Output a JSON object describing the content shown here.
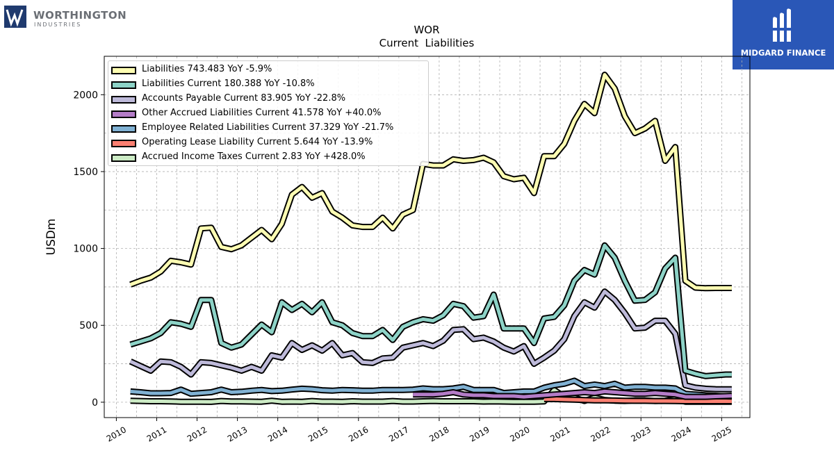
{
  "header": {
    "ticker": "WOR",
    "subtitle": "Current  Liabilities"
  },
  "logos": {
    "left": {
      "name": "WORTHINGTON",
      "sub": "INDUSTRIES",
      "color": "#1f3a6e"
    },
    "right": {
      "name": "MIDGARD FINANCE",
      "color": "#2a57b7"
    }
  },
  "chart_data": {
    "type": "line",
    "title": "WOR",
    "subtitle": "Current  Liabilities",
    "ylabel": "USDm",
    "xlabel": "",
    "xlim": [
      2009.7,
      2025.7
    ],
    "ylim": [
      -100,
      2250
    ],
    "grid": true,
    "legend_position": "top-left",
    "xticks": [
      2010,
      2011,
      2012,
      2013,
      2014,
      2015,
      2016,
      2017,
      2018,
      2019,
      2020,
      2021,
      2022,
      2023,
      2024,
      2025
    ],
    "yticks": [
      0,
      500,
      1000,
      1500,
      2000
    ],
    "x": [
      2010.35,
      2010.6,
      2010.85,
      2011.1,
      2011.35,
      2011.6,
      2011.85,
      2012.1,
      2012.35,
      2012.6,
      2012.85,
      2013.1,
      2013.35,
      2013.6,
      2013.85,
      2014.1,
      2014.35,
      2014.6,
      2014.85,
      2015.1,
      2015.35,
      2015.6,
      2015.85,
      2016.1,
      2016.35,
      2016.6,
      2016.85,
      2017.1,
      2017.35,
      2017.6,
      2017.85,
      2018.1,
      2018.35,
      2018.6,
      2018.85,
      2019.1,
      2019.35,
      2019.6,
      2019.85,
      2020.1,
      2020.35,
      2020.6,
      2020.85,
      2021.1,
      2021.35,
      2021.6,
      2021.85,
      2022.1,
      2022.35,
      2022.6,
      2022.85,
      2023.1,
      2023.35,
      2023.6,
      2023.85,
      2024.1,
      2024.35,
      2024.6,
      2024.85,
      2025.1,
      2025.25
    ],
    "series": [
      {
        "name": "Liabilities",
        "label": "Liabilities  743.483 YoY -5.9%",
        "color": "#ffffb3",
        "values": [
          765,
          790,
          810,
          850,
          920,
          910,
          895,
          1130,
          1135,
          1010,
          995,
          1020,
          1070,
          1120,
          1060,
          1160,
          1350,
          1400,
          1330,
          1360,
          1240,
          1200,
          1150,
          1140,
          1140,
          1200,
          1130,
          1220,
          1250,
          1550,
          1540,
          1540,
          1580,
          1570,
          1575,
          1590,
          1560,
          1470,
          1450,
          1460,
          1360,
          1600,
          1600,
          1680,
          1830,
          1940,
          1880,
          2130,
          2040,
          1860,
          1750,
          1780,
          1830,
          1570,
          1660,
          790,
          745,
          742,
          743,
          743,
          743
        ]
      },
      {
        "name": "Liabilities Current",
        "label": "Liabilities Current  180.388 YoY -10.8%",
        "color": "#8dd3c7",
        "values": [
          375,
          395,
          415,
          450,
          520,
          510,
          490,
          665,
          665,
          385,
          355,
          375,
          440,
          505,
          455,
          650,
          600,
          640,
          585,
          650,
          520,
          500,
          450,
          430,
          430,
          470,
          405,
          490,
          520,
          540,
          530,
          565,
          640,
          625,
          550,
          560,
          700,
          480,
          480,
          480,
          385,
          545,
          555,
          630,
          790,
          860,
          830,
          1020,
          940,
          790,
          660,
          665,
          715,
          870,
          940,
          205,
          185,
          170,
          175,
          180,
          180
        ]
      },
      {
        "name": "Accounts Payable Current",
        "label": "Accounts Payable Current  83.905 YoY -22.8%",
        "color": "#bebada",
        "values": [
          265,
          235,
          205,
          265,
          260,
          230,
          180,
          260,
          255,
          240,
          225,
          205,
          230,
          205,
          305,
          290,
          385,
          340,
          370,
          335,
          385,
          305,
          320,
          260,
          255,
          285,
          290,
          355,
          370,
          385,
          365,
          400,
          470,
          475,
          410,
          420,
          395,
          355,
          330,
          365,
          250,
          290,
          335,
          410,
          560,
          650,
          615,
          720,
          665,
          580,
          480,
          485,
          530,
          530,
          445,
          110,
          95,
          88,
          85,
          84,
          84
        ]
      },
      {
        "name": "Other Accrued Liabilities Current",
        "label": "Other Accrued Liabilities Current  41.578 YoY +40.0%",
        "color": "#b47cc7",
        "values": [
          null,
          null,
          null,
          null,
          null,
          null,
          null,
          null,
          null,
          null,
          null,
          null,
          null,
          null,
          null,
          null,
          null,
          null,
          null,
          null,
          null,
          null,
          null,
          null,
          null,
          null,
          null,
          null,
          50,
          50,
          50,
          55,
          65,
          50,
          45,
          45,
          40,
          40,
          40,
          35,
          40,
          45,
          50,
          55,
          60,
          65,
          60,
          70,
          65,
          60,
          55,
          55,
          60,
          55,
          50,
          35,
          35,
          35,
          38,
          40,
          42
        ]
      },
      {
        "name": "Employee Related Liabilities Current",
        "label": "Employee Related Liabilities Current  37.329 YoY -21.7%",
        "color": "#80b1d3",
        "values": [
          70,
          65,
          58,
          58,
          60,
          82,
          55,
          60,
          65,
          82,
          65,
          68,
          75,
          80,
          72,
          75,
          82,
          88,
          85,
          78,
          75,
          80,
          78,
          75,
          75,
          80,
          80,
          80,
          82,
          90,
          85,
          85,
          90,
          100,
          80,
          80,
          80,
          60,
          65,
          70,
          70,
          95,
          110,
          120,
          140,
          105,
          115,
          105,
          120,
          95,
          100,
          100,
          95,
          95,
          90,
          55,
          50,
          45,
          42,
          38,
          37
        ]
      },
      {
        "name": "Operating Lease Liability Current",
        "label": "Operating Lease Liability Current  5.644 YoY -13.9%",
        "color": "#fb8072",
        "values": [
          null,
          null,
          null,
          null,
          null,
          null,
          null,
          null,
          null,
          null,
          null,
          null,
          null,
          null,
          null,
          null,
          null,
          null,
          null,
          null,
          null,
          null,
          null,
          null,
          null,
          null,
          null,
          null,
          null,
          null,
          null,
          null,
          null,
          null,
          null,
          null,
          null,
          null,
          null,
          null,
          null,
          20,
          20,
          18,
          16,
          14,
          12,
          12,
          11,
          10,
          9,
          9,
          8,
          8,
          7,
          6,
          6,
          6,
          6,
          6,
          6
        ]
      },
      {
        "name": "Accrued Income Taxes Current",
        "label": "Accrued Income Taxes Current  2.83 YoY +428.0%",
        "color": "#ccebc5",
        "values": [
          10,
          8,
          6,
          6,
          5,
          3,
          3,
          3,
          2,
          8,
          5,
          5,
          4,
          3,
          10,
          3,
          4,
          3,
          8,
          4,
          4,
          3,
          6,
          4,
          4,
          4,
          8,
          4,
          4,
          6,
          8,
          6,
          6,
          6,
          6,
          4,
          5,
          4,
          3,
          3,
          3,
          5,
          80,
          35,
          30,
          8,
          30,
          15,
          10,
          8,
          12,
          12,
          8,
          10,
          20,
          3,
          3,
          3,
          3,
          3,
          3
        ]
      }
    ]
  }
}
